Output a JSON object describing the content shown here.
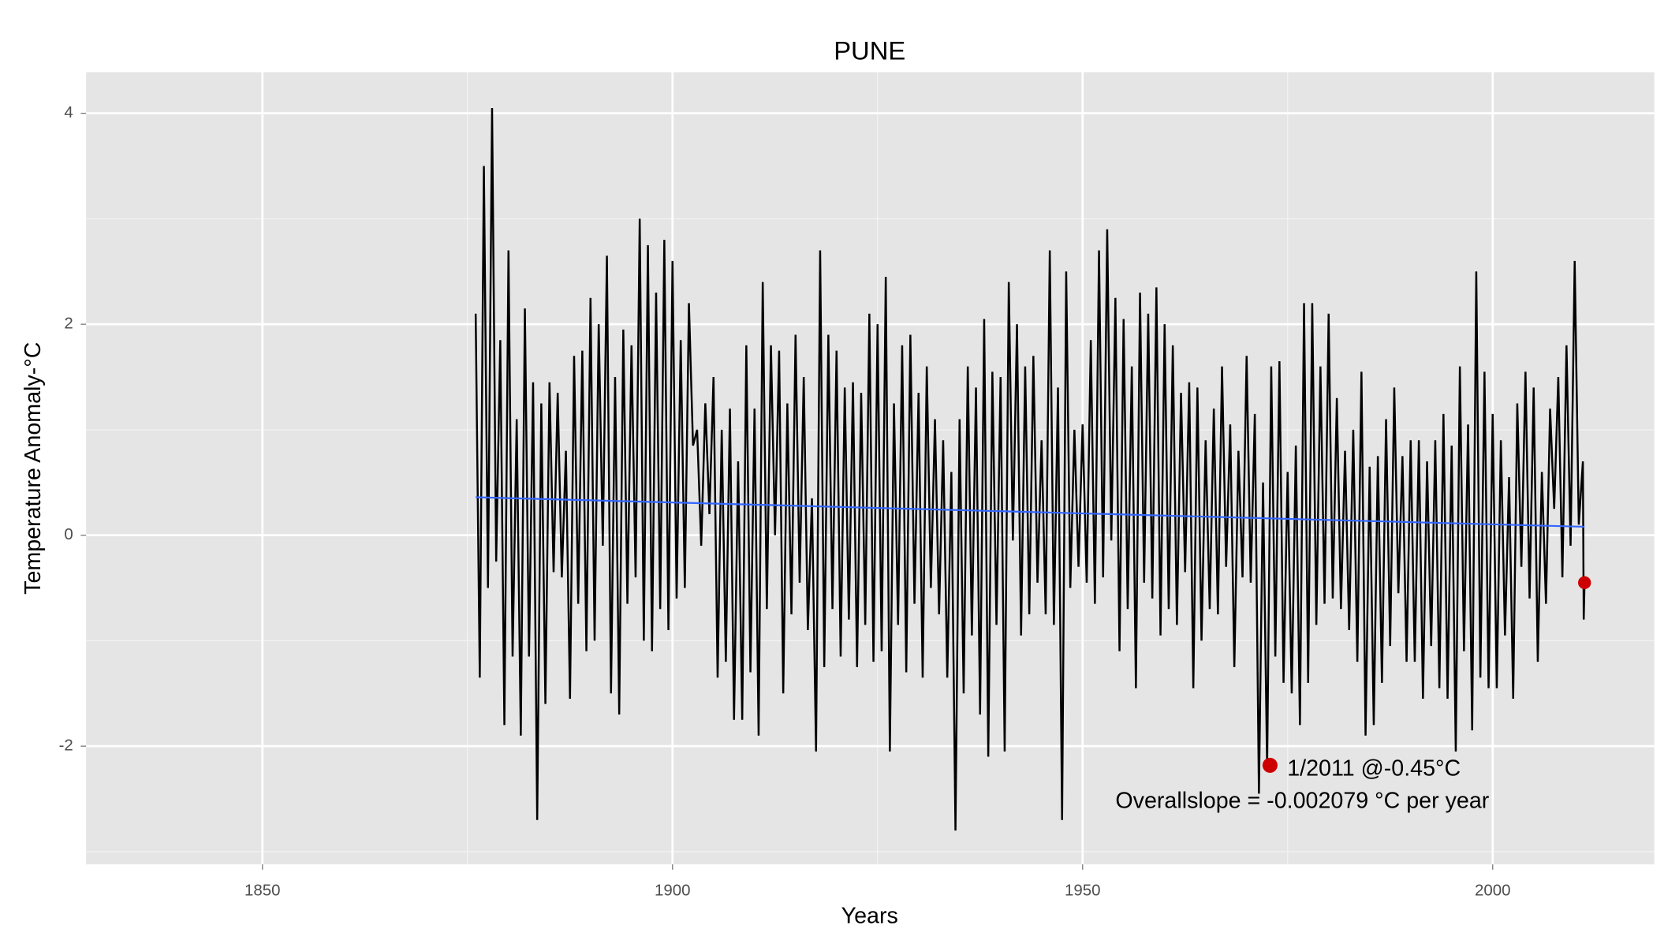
{
  "chart_data": {
    "type": "line",
    "title": "PUNE",
    "x_label": "Years",
    "y_label": "Temperature Anomaly-°C",
    "xlim": [
      1828.5,
      2019.7
    ],
    "ylim": [
      -3.12,
      4.39
    ],
    "xticks": [
      1850,
      1900,
      1950,
      2000
    ],
    "yticks": [
      -2,
      0,
      2,
      4
    ],
    "minor_xticks": [
      1875,
      1925,
      1975
    ],
    "minor_yticks": [
      -3,
      -1,
      1,
      3
    ],
    "grid": true,
    "series": [
      {
        "color": "#000000",
        "x": [
          1876,
          1876.5,
          1877,
          1877.5,
          1878,
          1878.5,
          1879,
          1879.5,
          1880,
          1880.5,
          1881,
          1881.5,
          1882,
          1882.5,
          1883,
          1883.5,
          1884,
          1884.5,
          1885,
          1885.5,
          1886,
          1886.5,
          1887,
          1887.5,
          1888,
          1888.5,
          1889,
          1889.5,
          1890,
          1890.5,
          1891,
          1891.5,
          1892,
          1892.5,
          1893,
          1893.5,
          1894,
          1894.5,
          1895,
          1895.5,
          1896,
          1896.5,
          1897,
          1897.5,
          1898,
          1898.5,
          1899,
          1899.5,
          1900,
          1900.5,
          1901,
          1901.5,
          1902,
          1902.5,
          1903,
          1903.5,
          1904,
          1904.5,
          1905,
          1905.5,
          1906,
          1906.5,
          1907,
          1907.5,
          1908,
          1908.5,
          1909,
          1909.5,
          1910,
          1910.5,
          1911,
          1911.5,
          1912,
          1912.5,
          1913,
          1913.5,
          1914,
          1914.5,
          1915,
          1915.5,
          1916,
          1916.5,
          1917,
          1917.5,
          1918,
          1918.5,
          1919,
          1919.5,
          1920,
          1920.5,
          1921,
          1921.5,
          1922,
          1922.5,
          1923,
          1923.5,
          1924,
          1924.5,
          1925,
          1925.5,
          1926,
          1926.5,
          1927,
          1927.5,
          1928,
          1928.5,
          1929,
          1929.5,
          1930,
          1930.5,
          1931,
          1931.5,
          1932,
          1932.5,
          1933,
          1933.5,
          1934,
          1934.5,
          1935,
          1935.5,
          1936,
          1936.5,
          1937,
          1937.5,
          1938,
          1938.5,
          1939,
          1939.5,
          1940,
          1940.5,
          1941,
          1941.5,
          1942,
          1942.5,
          1943,
          1943.5,
          1944,
          1944.5,
          1945,
          1945.5,
          1946,
          1946.5,
          1947,
          1947.5,
          1948,
          1948.5,
          1949,
          1949.5,
          1950,
          1950.5,
          1951,
          1951.5,
          1952,
          1952.5,
          1953,
          1953.5,
          1954,
          1954.5,
          1955,
          1955.5,
          1956,
          1956.5,
          1957,
          1957.5,
          1958,
          1958.5,
          1959,
          1959.5,
          1960,
          1960.5,
          1961,
          1961.5,
          1962,
          1962.5,
          1963,
          1963.5,
          1964,
          1964.5,
          1965,
          1965.5,
          1966,
          1966.5,
          1967,
          1967.5,
          1968,
          1968.5,
          1969,
          1969.5,
          1970,
          1970.5,
          1971,
          1971.5,
          1972,
          1972.5,
          1973,
          1973.5,
          1974,
          1974.5,
          1975,
          1975.5,
          1976,
          1976.5,
          1977,
          1977.5,
          1978,
          1978.5,
          1979,
          1979.5,
          1980,
          1980.5,
          1981,
          1981.5,
          1982,
          1982.5,
          1983,
          1983.5,
          1984,
          1984.5,
          1985,
          1985.5,
          1986,
          1986.5,
          1987,
          1987.5,
          1988,
          1988.5,
          1989,
          1989.5,
          1990,
          1990.5,
          1991,
          1991.5,
          1992,
          1992.5,
          1993,
          1993.5,
          1994,
          1994.5,
          1995,
          1995.5,
          1996,
          1996.5,
          1997,
          1997.5,
          1998,
          1998.5,
          1999,
          1999.5,
          2000,
          2000.5,
          2001,
          2001.5,
          2002,
          2002.5,
          2003,
          2003.5,
          2004,
          2004.5,
          2005,
          2005.5,
          2006,
          2006.5,
          2007,
          2007.5,
          2008,
          2008.5,
          2009,
          2009.5,
          2010,
          2010.5,
          2011,
          2011.1,
          2011.2
        ],
        "values": [
          2.1,
          -1.35,
          3.5,
          -0.5,
          4.05,
          -0.25,
          1.85,
          -1.8,
          2.7,
          -1.15,
          1.1,
          -1.9,
          2.15,
          -1.15,
          1.45,
          -2.7,
          1.25,
          -1.6,
          1.45,
          -0.35,
          1.35,
          -0.4,
          0.8,
          -1.55,
          1.7,
          -0.65,
          1.75,
          -1.1,
          2.25,
          -1.0,
          2.0,
          -0.1,
          2.65,
          -1.5,
          1.5,
          -1.7,
          1.95,
          -0.65,
          1.8,
          -0.4,
          3.0,
          -1.0,
          2.75,
          -1.1,
          2.3,
          -0.7,
          2.8,
          -0.9,
          2.6,
          -0.6,
          1.85,
          -0.5,
          2.2,
          0.85,
          1.0,
          -0.1,
          1.25,
          0.2,
          1.5,
          -1.35,
          1.0,
          -1.2,
          1.2,
          -1.75,
          0.7,
          -1.75,
          1.8,
          -1.3,
          1.2,
          -1.9,
          2.4,
          -0.7,
          1.8,
          0.0,
          1.75,
          -1.5,
          1.25,
          -0.75,
          1.9,
          -0.45,
          1.5,
          -0.9,
          0.35,
          -2.05,
          2.7,
          -1.25,
          1.9,
          -0.7,
          1.75,
          -1.15,
          1.4,
          -0.8,
          1.45,
          -1.25,
          1.35,
          -0.85,
          2.1,
          -1.2,
          2.0,
          -1.1,
          2.45,
          -2.05,
          1.25,
          -0.85,
          1.8,
          -1.3,
          1.9,
          -0.65,
          1.35,
          -1.35,
          1.6,
          -0.5,
          1.1,
          -0.75,
          0.9,
          -1.35,
          0.6,
          -2.8,
          1.1,
          -1.5,
          1.6,
          -0.95,
          1.4,
          -1.7,
          2.05,
          -2.1,
          1.55,
          -0.85,
          1.5,
          -2.05,
          2.4,
          -0.05,
          2.0,
          -0.95,
          1.6,
          -0.75,
          1.7,
          -0.45,
          0.9,
          -0.75,
          2.7,
          -0.85,
          1.4,
          -2.7,
          2.5,
          -0.5,
          1.0,
          -0.3,
          1.05,
          -0.45,
          1.85,
          -0.65,
          2.7,
          -0.4,
          2.9,
          -0.05,
          2.25,
          -1.1,
          2.05,
          -0.7,
          1.6,
          -1.45,
          2.3,
          -0.45,
          2.1,
          -0.6,
          2.35,
          -0.95,
          2.0,
          -0.7,
          1.8,
          -0.85,
          1.35,
          -0.35,
          1.45,
          -1.45,
          1.4,
          -1.0,
          0.9,
          -0.7,
          1.2,
          -0.75,
          1.6,
          -0.3,
          1.05,
          -1.25,
          0.8,
          -0.4,
          1.7,
          -0.45,
          1.15,
          -2.45,
          0.5,
          -2.2,
          1.6,
          -1.15,
          1.65,
          -1.4,
          0.6,
          -1.5,
          0.85,
          -1.8,
          2.2,
          -1.4,
          2.2,
          -0.85,
          1.6,
          -0.65,
          2.1,
          -0.6,
          1.3,
          -0.7,
          0.8,
          -0.9,
          1.0,
          -1.2,
          1.55,
          -1.9,
          0.65,
          -1.8,
          0.75,
          -1.4,
          1.1,
          -1.05,
          1.4,
          -0.55,
          0.75,
          -1.2,
          0.9,
          -1.2,
          0.9,
          -1.55,
          0.7,
          -1.05,
          0.9,
          -1.45,
          1.15,
          -1.55,
          0.85,
          -2.05,
          1.6,
          -1.1,
          1.05,
          -1.85,
          2.5,
          -1.35,
          1.55,
          -1.45,
          1.15,
          -1.45,
          0.9,
          -0.95,
          0.55,
          -1.55,
          1.25,
          -0.3,
          1.55,
          -0.6,
          1.4,
          -1.2,
          0.6,
          -0.65,
          1.2,
          0.25,
          1.5,
          -0.4,
          1.8,
          -0.1,
          2.6,
          0.1,
          0.7,
          -0.8,
          -0.45
        ]
      },
      {
        "color": "#3366ff",
        "x": [
          1876,
          2011.2
        ],
        "values": [
          0.36,
          0.08
        ]
      }
    ],
    "highlight": {
      "x": 2011.2,
      "y": -0.45,
      "color": "#cc0000"
    },
    "annotations": [
      "1/2011 @-0.45°C",
      "Overallslope = -0.002079  °C per year"
    ]
  }
}
